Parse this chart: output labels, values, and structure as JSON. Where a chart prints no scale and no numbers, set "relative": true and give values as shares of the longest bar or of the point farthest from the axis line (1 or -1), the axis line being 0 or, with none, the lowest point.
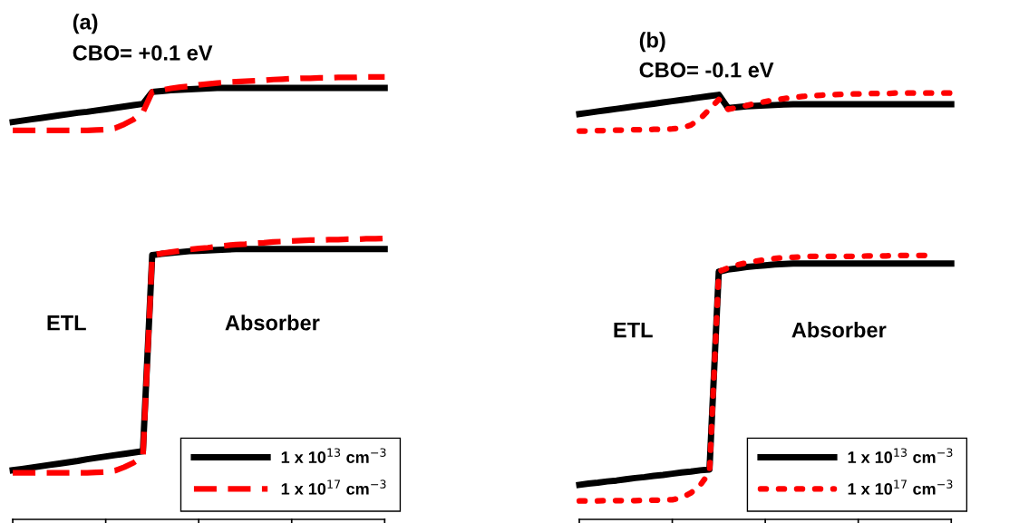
{
  "chart_data": [
    {
      "type": "line",
      "title": "(a)",
      "subtitle": "CBO= +0.1 eV",
      "relative": true,
      "legend": "bottom right",
      "grid": false,
      "categories": [
        null,
        null,
        null,
        null,
        null,
        null,
        null,
        null,
        null,
        null,
        null,
        null,
        null,
        null,
        null,
        null,
        null,
        null,
        null,
        null,
        null,
        null,
        null,
        null,
        null,
        null,
        null,
        null,
        null,
        null,
        null,
        null,
        null,
        null,
        null,
        null,
        null,
        null,
        null,
        null,
        null
      ],
      "annotations": [
        "ETL",
        "Absorber"
      ],
      "series": [
        {
          "name": "1 x 10$^{13}$ cm$^{−3}$",
          "color": "#000000",
          "line_style": "solid",
          "values": [
            0.898,
            0.901,
            0.904,
            0.907,
            0.91,
            0.913,
            0.916,
            0.919,
            0.921,
            0.924,
            0.927,
            0.93,
            0.933,
            0.936,
            0.939,
            0.966,
            0.968,
            0.97,
            0.971,
            0.972,
            0.973,
            0.974,
            0.975,
            0.975,
            0.975,
            0.975,
            0.975,
            0.975,
            0.975,
            0.975,
            0.975,
            0.975,
            0.975,
            0.975,
            0.975,
            0.975,
            0.975,
            0.975,
            0.975,
            0.975,
            0.975
          ]
        },
        {
          "color": "#000000",
          "line_style": "solid",
          "values": [
            0.111,
            0.114,
            0.117,
            0.12,
            0.123,
            0.126,
            0.129,
            0.132,
            0.136,
            0.139,
            0.142,
            0.145,
            0.148,
            0.151,
            0.154,
            0.597,
            0.6,
            0.602,
            0.604,
            0.606,
            0.607,
            0.608,
            0.609,
            0.61,
            0.611,
            0.611,
            0.611,
            0.611,
            0.611,
            0.611,
            0.611,
            0.611,
            0.611,
            0.611,
            0.611,
            0.611,
            0.611,
            0.611,
            0.611,
            0.611,
            0.611
          ]
        },
        {
          "name": "1 x 10$^{17}$ cm$^{−3}$",
          "color": "#ff0000",
          "line_style": "dashed",
          "values": [
            0.879,
            0.879,
            0.879,
            0.879,
            0.879,
            0.879,
            0.879,
            0.879,
            0.879,
            0.88,
            0.881,
            0.884,
            0.893,
            0.904,
            0.92,
            0.966,
            0.97,
            0.974,
            0.977,
            0.979,
            0.982,
            0.984,
            0.986,
            0.988,
            0.989,
            0.99,
            0.991,
            0.992,
            0.994,
            0.995,
            0.996,
            0.997,
            0.997,
            0.998,
            0.998,
            0.999,
            0.999,
            0.999,
            1.0,
            1.0,
            1.0
          ]
        },
        {
          "color": "#ff0000",
          "line_style": "dashed",
          "values": [
            0.105,
            0.105,
            0.105,
            0.105,
            0.105,
            0.105,
            0.105,
            0.105,
            0.105,
            0.106,
            0.107,
            0.11,
            0.118,
            0.128,
            0.142,
            0.597,
            0.601,
            0.604,
            0.607,
            0.61,
            0.612,
            0.614,
            0.617,
            0.619,
            0.621,
            0.622,
            0.624,
            0.625,
            0.627,
            0.628,
            0.629,
            0.63,
            0.631,
            0.631,
            0.632,
            0.632,
            0.633,
            0.633,
            0.634,
            0.634,
            0.635
          ]
        }
      ]
    },
    {
      "type": "line",
      "title": "(b)",
      "subtitle": "CBO= -0.1 eV",
      "relative": true,
      "legend": "bottom right",
      "grid": false,
      "categories": [
        null,
        null,
        null,
        null,
        null,
        null,
        null,
        null,
        null,
        null,
        null,
        null,
        null,
        null,
        null,
        null,
        null,
        null,
        null,
        null,
        null,
        null,
        null,
        null,
        null,
        null,
        null,
        null,
        null,
        null,
        null,
        null,
        null,
        null,
        null,
        null,
        null,
        null,
        null,
        null,
        null
      ],
      "annotations": [
        "ETL",
        "Absorber"
      ],
      "series": [
        {
          "name": "1 x 10$^{13}$ cm$^{−3}$",
          "color": "#000000",
          "line_style": "solid",
          "values": [
            0.951,
            0.954,
            0.957,
            0.96,
            0.963,
            0.966,
            0.969,
            0.972,
            0.975,
            0.978,
            0.981,
            0.984,
            0.987,
            0.99,
            0.993,
            0.996,
            0.965,
            0.967,
            0.969,
            0.97,
            0.971,
            0.972,
            0.973,
            0.974,
            0.974,
            0.974,
            0.974,
            0.974,
            0.974,
            0.974,
            0.974,
            0.974,
            0.974,
            0.974,
            0.974,
            0.974,
            0.974,
            0.974,
            0.974,
            0.974,
            0.974
          ]
        },
        {
          "color": "#000000",
          "line_style": "solid",
          "values": [
            0.081,
            0.084,
            0.086,
            0.089,
            0.091,
            0.094,
            0.097,
            0.099,
            0.102,
            0.104,
            0.107,
            0.11,
            0.112,
            0.115,
            0.117,
            0.581,
            0.586,
            0.589,
            0.592,
            0.594,
            0.596,
            0.598,
            0.599,
            0.6,
            0.6,
            0.6,
            0.6,
            0.6,
            0.6,
            0.6,
            0.6,
            0.6,
            0.6,
            0.6,
            0.6,
            0.6,
            0.6,
            0.6,
            0.6,
            0.6,
            0.6
          ]
        },
        {
          "name": "1 x 10$^{17}$ cm$^{−3}$",
          "color": "#ff0000",
          "line_style": "dotted",
          "values": [
            0.911,
            0.911,
            0.912,
            0.912,
            0.913,
            0.913,
            0.914,
            0.914,
            0.915,
            0.915,
            0.916,
            0.918,
            0.925,
            0.94,
            0.962,
            0.985,
            0.962,
            0.966,
            0.971,
            0.976,
            0.98,
            0.984,
            0.987,
            0.99,
            0.992,
            0.994,
            0.995,
            0.996,
            0.997,
            0.998,
            0.998,
            0.999,
            0.999,
            0.999,
            1.0,
            1.0,
            1.0,
            1.0,
            1.0,
            1.0,
            1.0
          ]
        },
        {
          "color": "#ff0000",
          "line_style": "dotted",
          "values": [
            0.043,
            0.043,
            0.043,
            0.044,
            0.044,
            0.044,
            0.044,
            0.045,
            0.045,
            0.045,
            0.046,
            0.05,
            0.062,
            0.08,
            0.11,
            0.581,
            0.59,
            0.597,
            0.602,
            0.606,
            0.609,
            0.612,
            0.614,
            0.615,
            0.616,
            0.617,
            0.617,
            0.617,
            0.617,
            0.617,
            0.617,
            0.618,
            0.618,
            0.618,
            0.619,
            0.619,
            0.619,
            0.619,
            0.619,
            null,
            null
          ]
        }
      ]
    }
  ]
}
